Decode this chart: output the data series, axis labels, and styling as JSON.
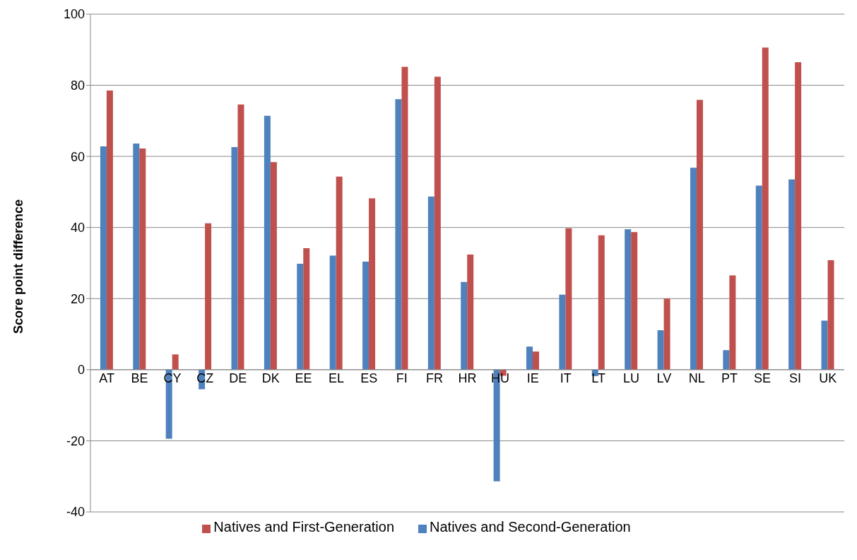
{
  "chart_data": {
    "type": "bar",
    "ylabel": "Score point difference",
    "categories": [
      "AT",
      "BE",
      "CY",
      "CZ",
      "DE",
      "DK",
      "EE",
      "EL",
      "ES",
      "FI",
      "FR",
      "HR",
      "HU",
      "IE",
      "IT",
      "LT",
      "LU",
      "LV",
      "NL",
      "PT",
      "SE",
      "SI",
      "UK"
    ],
    "series": [
      {
        "name": "Natives and Second-Generation",
        "color": "#4f81bd",
        "values": [
          62.8,
          63.6,
          -19.4,
          -5.5,
          62.6,
          71.4,
          29.8,
          32.1,
          30.4,
          76.1,
          48.7,
          24.7,
          -31.4,
          6.5,
          21.1,
          -1.8,
          39.5,
          11.1,
          56.8,
          5.5,
          51.8,
          53.5,
          13.8
        ]
      },
      {
        "name": "Natives and First-Generation",
        "color": "#c0504d",
        "values": [
          78.5,
          62.2,
          4.3,
          41.2,
          74.6,
          58.4,
          34.2,
          54.3,
          48.2,
          85.2,
          82.4,
          32.4,
          -1.7,
          5.1,
          39.8,
          37.8,
          38.7,
          20,
          75.9,
          26.5,
          90.6,
          86.5,
          30.8
        ]
      }
    ],
    "ylim": [
      -40,
      100
    ],
    "yticks": [
      -40,
      -20,
      0,
      20,
      40,
      60,
      80,
      100
    ],
    "grid": "y",
    "legend": "bottom"
  }
}
